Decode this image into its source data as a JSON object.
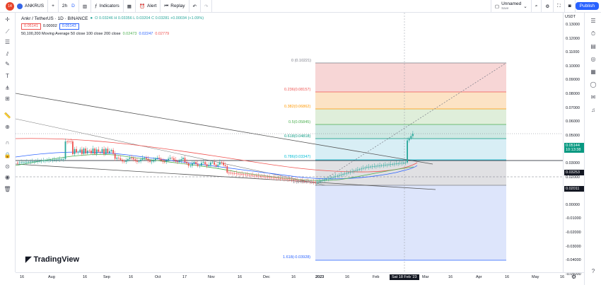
{
  "topbar": {
    "avatar": "14",
    "symbol": "ANKRUS",
    "add": "+",
    "interval": "2h",
    "interval2": "D",
    "indicators": "Indicators",
    "alert": "Alert",
    "replay": "Replay",
    "layout_name": "Unnamed",
    "layout_sub": "Save",
    "publish": "Publish"
  },
  "legend": {
    "title": "Ankr / TetherUS · 1D · BINANCE",
    "ohlc": "O 0.03246  H 0.03356  L 0.03204  C 0.03281  +0.00034 (+1.09%)",
    "price1": "0.05141",
    "spread": "0.00002",
    "price2": "0.05143",
    "ma_label": "50,100,200 Moving Average 50 close 100 close 200 close",
    "ma1": "0.02473",
    "ma2": "0.02247",
    "ma3": "0.02779"
  },
  "fib": [
    {
      "label": "0 (0.10221)"
    },
    {
      "label": "0.236(0.08157)"
    },
    {
      "label": "0.382(0.06862)"
    },
    {
      "label": "0.5(0.05845)"
    },
    {
      "label": "0.618(0.04818)"
    },
    {
      "label": "0.786(0.03347)"
    },
    {
      "label": "1 (0.01476)"
    },
    {
      "label": "1.618(-0.03928)"
    }
  ],
  "price_axis": {
    "currency": "USDT",
    "ticks": [
      "0.13000",
      "0.12000",
      "0.11000",
      "0.10000",
      "0.09000",
      "0.08000",
      "0.07000",
      "0.06000",
      "0.05000",
      "0.04000",
      "0.03000",
      "0.02000",
      "0.01000",
      "0.00000",
      "-0.01000",
      "-0.02000",
      "-0.03000",
      "-0.04000",
      "-0.05000"
    ],
    "current_price": "0.05144",
    "countdown": "10:13:38",
    "label_dark": "0.03253",
    "label_mid": "0.02011"
  },
  "time_axis": {
    "ticks": [
      "16",
      "Aug",
      "16",
      "Sep",
      "16",
      "Oct",
      "17",
      "Nov",
      "16",
      "Dec",
      "16",
      "2023",
      "16",
      "Feb",
      "Mar",
      "16",
      "Apr",
      "16",
      "May",
      "16"
    ],
    "cursor": "Sat 18 Feb '23"
  },
  "logo": "TradingView",
  "colors": {
    "accent": "#2962ff",
    "up": "#26a69a",
    "down": "#ef5350"
  }
}
